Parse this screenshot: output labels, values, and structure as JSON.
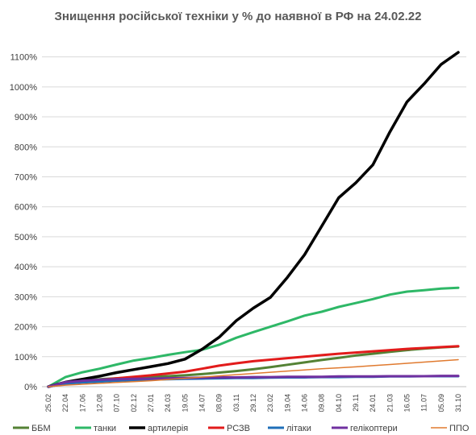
{
  "chart_data": {
    "type": "line",
    "title": "Знищення російської техніки у % до наявної в РФ на 24.02.22",
    "xlabel": "",
    "ylabel": "",
    "ylim": [
      0,
      1150
    ],
    "y_tick_labels": [
      "0%",
      "100%",
      "200%",
      "300%",
      "400%",
      "500%",
      "600%",
      "700%",
      "800%",
      "900%",
      "1000%",
      "1100%"
    ],
    "x_tick_labels": [
      "25.02",
      "22.04",
      "17.06",
      "12.08",
      "07.10",
      "02.12",
      "27.01",
      "24.03",
      "19.05",
      "14.07",
      "08.09",
      "03.11",
      "29.12",
      "23.02",
      "19.04",
      "14.06",
      "09.08",
      "04.10",
      "29.11",
      "24.01",
      "21.03",
      "16.05",
      "11.07",
      "05.09",
      "31.10"
    ],
    "grid": true,
    "legend_position": "bottom",
    "series": [
      {
        "name": "ББМ",
        "color": "#548235",
        "width": 3,
        "values": [
          0,
          13,
          20,
          25,
          28,
          30,
          33,
          35,
          38,
          42,
          47,
          52,
          58,
          65,
          73,
          81,
          89,
          96,
          104,
          110,
          116,
          122,
          127,
          131,
          134
        ]
      },
      {
        "name": "танки",
        "color": "#2EB867",
        "width": 3,
        "values": [
          0,
          32,
          48,
          60,
          74,
          87,
          96,
          106,
          115,
          123,
          140,
          163,
          182,
          200,
          218,
          237,
          250,
          266,
          279,
          292,
          307,
          317,
          322,
          327,
          330
        ]
      },
      {
        "name": "артилерія",
        "color": "#000000",
        "width": 3.5,
        "values": [
          0,
          15,
          25,
          35,
          47,
          57,
          67,
          77,
          92,
          125,
          165,
          220,
          262,
          298,
          365,
          440,
          535,
          630,
          680,
          740,
          850,
          950,
          1010,
          1075,
          1115
        ]
      },
      {
        "name": "РСЗВ",
        "color": "#E21B1B",
        "width": 3,
        "values": [
          0,
          10,
          16,
          22,
          28,
          33,
          38,
          44,
          50,
          60,
          70,
          78,
          85,
          90,
          95,
          100,
          105,
          110,
          114,
          118,
          122,
          126,
          129,
          132,
          135
        ]
      },
      {
        "name": "літаки",
        "color": "#1F6FB8",
        "width": 3,
        "values": [
          0,
          10,
          14,
          17,
          20,
          22,
          24,
          25,
          26,
          27,
          28,
          29,
          29,
          30,
          31,
          31,
          32,
          32,
          33,
          33,
          34,
          34,
          35,
          35,
          35
        ]
      },
      {
        "name": "гелікоптери",
        "color": "#7030A0",
        "width": 3,
        "values": [
          0,
          15,
          20,
          23,
          25,
          26,
          27,
          28,
          29,
          30,
          31,
          31,
          32,
          32,
          33,
          33,
          33,
          34,
          34,
          34,
          35,
          35,
          35,
          36,
          36
        ]
      },
      {
        "name": "ППО",
        "color": "#E07A2F",
        "width": 1.5,
        "values": [
          0,
          5,
          8,
          11,
          14,
          17,
          20,
          24,
          28,
          32,
          36,
          40,
          44,
          48,
          52,
          56,
          60,
          63,
          66,
          70,
          74,
          78,
          82,
          86,
          90
        ]
      }
    ]
  }
}
